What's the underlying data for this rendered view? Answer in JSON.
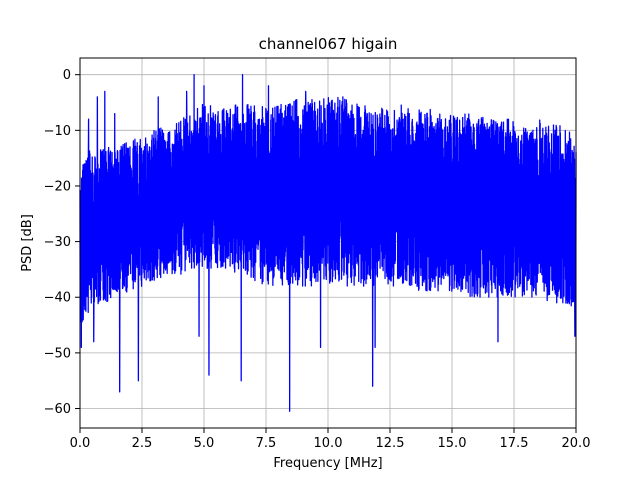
{
  "chart_data": {
    "type": "line",
    "title": "channel067 higain",
    "xlabel": "Frequency [MHz]",
    "ylabel": "PSD [dB]",
    "xlim": [
      0,
      20
    ],
    "ylim": [
      -63.5,
      3
    ],
    "grid": true,
    "xticks": [
      0.0,
      2.5,
      5.0,
      7.5,
      10.0,
      12.5,
      15.0,
      17.5,
      20.0
    ],
    "xtick_labels": [
      "0.0",
      "2.5",
      "5.0",
      "7.5",
      "10.0",
      "12.5",
      "15.0",
      "17.5",
      "20.0"
    ],
    "yticks": [
      0,
      -10,
      -20,
      -30,
      -40,
      -50,
      -60
    ],
    "ytick_labels": [
      "0",
      "−10",
      "−20",
      "−30",
      "−40",
      "−50",
      "−60"
    ],
    "series": [
      {
        "color": "#0000ff",
        "description_points": "approximate upper/lower envelope and notable spikes of the noisy PSD trace",
        "upper_envelope": {
          "x": [
            0.0,
            0.2,
            0.4,
            0.6,
            1.0,
            1.4,
            2.0,
            2.5,
            3.0,
            3.5,
            4.0,
            4.5,
            5.0,
            5.5,
            6.0,
            6.5,
            7.0,
            7.5,
            8.0,
            8.5,
            9.0,
            9.5,
            10.0,
            10.5,
            11.0,
            11.5,
            12.0,
            12.5,
            13.0,
            13.5,
            14.0,
            14.5,
            15.0,
            15.5,
            16.0,
            16.5,
            17.0,
            17.5,
            18.0,
            18.5,
            19.0,
            19.5,
            20.0
          ],
          "y": [
            -15,
            -14,
            -13,
            -14,
            -13,
            -13,
            -12,
            -11,
            -10,
            -9,
            -8,
            -7,
            -5,
            -6,
            -6,
            -5,
            -5,
            -6,
            -5,
            -4,
            -5,
            -4,
            -4,
            -4,
            -5,
            -5,
            -6,
            -6,
            -5,
            -6,
            -6,
            -7,
            -7,
            -7,
            -7,
            -8,
            -8,
            -8,
            -9,
            -8,
            -9,
            -9,
            -10
          ]
        },
        "lower_envelope": {
          "x": [
            0.0,
            0.2,
            0.5,
            1.0,
            1.5,
            2.0,
            2.5,
            3.0,
            3.5,
            4.0,
            4.5,
            5.0,
            5.5,
            6.0,
            6.5,
            7.0,
            7.5,
            8.0,
            8.5,
            9.0,
            9.5,
            10.0,
            10.5,
            11.0,
            11.5,
            12.0,
            12.5,
            13.0,
            13.5,
            14.0,
            14.5,
            15.0,
            15.5,
            16.0,
            16.5,
            17.0,
            17.5,
            18.0,
            18.5,
            19.0,
            19.5,
            20.0
          ],
          "y": [
            -48,
            -44,
            -42,
            -41,
            -40,
            -39,
            -38,
            -37,
            -36,
            -36,
            -35,
            -35,
            -35,
            -35,
            -36,
            -37,
            -38,
            -38,
            -38,
            -38,
            -38,
            -38,
            -38,
            -38,
            -38,
            -38,
            -38,
            -38,
            -39,
            -39,
            -39,
            -39,
            -40,
            -40,
            -40,
            -40,
            -40,
            -40,
            -40,
            -41,
            -41,
            -42
          ]
        },
        "peaks": {
          "x": [
            0.35,
            0.7,
            1.0,
            1.4,
            3.15,
            4.3,
            4.6,
            5.0,
            6.55,
            7.6,
            9.1,
            10.6
          ],
          "y": [
            -8,
            -4,
            -3,
            -7,
            -4,
            -3,
            0,
            -2,
            0,
            -2,
            -3,
            -4
          ]
        },
        "dips": {
          "x": [
            0.05,
            0.55,
            1.6,
            2.35,
            4.8,
            5.2,
            6.5,
            8.45,
            9.7,
            11.8,
            11.9,
            16.85,
            19.95
          ],
          "y": [
            -49,
            -48,
            -57,
            -55,
            -47,
            -54,
            -55,
            -60.5,
            -49,
            -56,
            -49,
            -48,
            -47
          ]
        }
      }
    ]
  }
}
